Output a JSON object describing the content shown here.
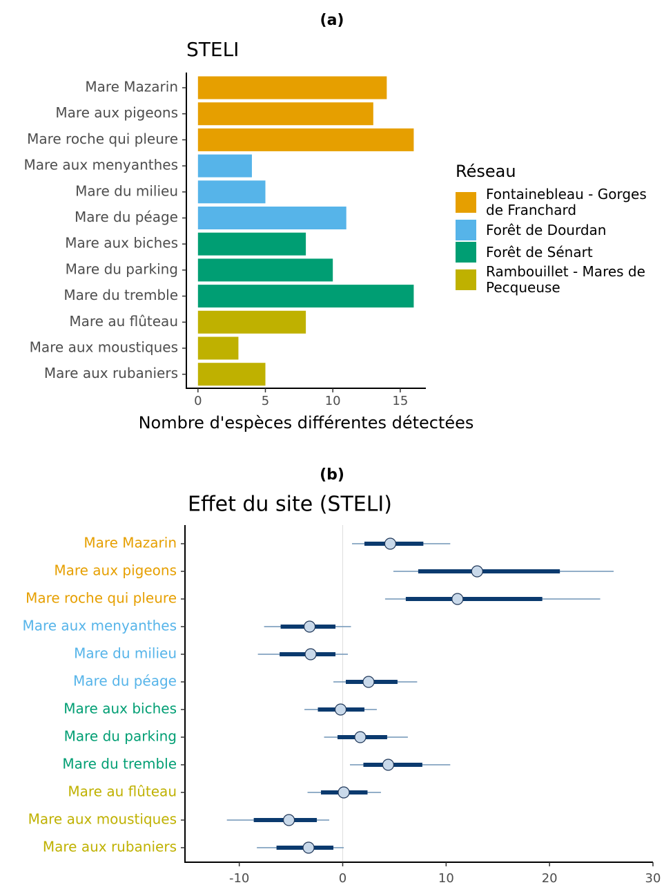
{
  "chart_data": [
    {
      "type": "bar",
      "orientation": "horizontal",
      "panel": "(a)",
      "title": "STELI",
      "x_label": "Nombre d'espèces différentes détectées",
      "legend_title": "Réseau",
      "legend_position": "right",
      "categories": [
        "Mare Mazarin",
        "Mare aux pigeons",
        "Mare roche qui pleure",
        "Mare aux menyanthes",
        "Mare du milieu",
        "Mare du péage",
        "Mare aux biches",
        "Mare du parking",
        "Mare du tremble",
        "Mare au flûteau",
        "Mare aux moustiques",
        "Mare aux rubaniers"
      ],
      "series": [
        {
          "name": "Fontainebleau - Gorges de Franchard",
          "color": "#E69F00",
          "values": [
            14,
            13,
            16,
            null,
            null,
            null,
            null,
            null,
            null,
            null,
            null,
            null
          ]
        },
        {
          "name": "Forêt de Dourdan",
          "color": "#56B4E9",
          "values": [
            null,
            null,
            null,
            4,
            5,
            11,
            null,
            null,
            null,
            null,
            null,
            null
          ]
        },
        {
          "name": "Forêt de Sénart",
          "color": "#009E73",
          "values": [
            null,
            null,
            null,
            null,
            null,
            null,
            8,
            10,
            16,
            null,
            null,
            null
          ]
        },
        {
          "name": "Rambouillet - Mares de Pecqueuse",
          "color": "#BFB100",
          "values": [
            null,
            null,
            null,
            null,
            null,
            null,
            null,
            null,
            null,
            8,
            3,
            5
          ]
        }
      ],
      "xlim": [
        -0.86,
        16.9
      ],
      "xticks": [
        0,
        5,
        10,
        15
      ]
    },
    {
      "type": "pointrange",
      "panel": "(b)",
      "title": "Effet du site (STELI)",
      "categories": [
        "Mare Mazarin",
        "Mare aux pigeons",
        "Mare roche qui pleure",
        "Mare aux menyanthes",
        "Mare du milieu",
        "Mare du péage",
        "Mare aux biches",
        "Mare du parking",
        "Mare du tremble",
        "Mare au flûteau",
        "Mare aux moustiques",
        "Mare aux rubaniers"
      ],
      "label_colors": [
        "#E69F00",
        "#E69F00",
        "#E69F00",
        "#56B4E9",
        "#56B4E9",
        "#56B4E9",
        "#009E73",
        "#009E73",
        "#009E73",
        "#BFB100",
        "#BFB100",
        "#BFB100"
      ],
      "values": [
        4.6,
        13.0,
        11.1,
        -3.2,
        -3.1,
        2.5,
        -0.2,
        1.7,
        4.4,
        0.1,
        -5.2,
        -3.3
      ],
      "lo50": [
        2.1,
        7.3,
        6.1,
        -6.0,
        -6.1,
        0.3,
        -2.4,
        -0.5,
        2.0,
        -2.1,
        -8.6,
        -6.4
      ],
      "hi50": [
        7.8,
        21.0,
        19.3,
        -0.7,
        -0.7,
        5.3,
        2.1,
        4.3,
        7.7,
        2.4,
        -2.5,
        -0.9
      ],
      "lo95": [
        0.9,
        4.9,
        4.1,
        -7.6,
        -8.2,
        -0.9,
        -3.7,
        -1.8,
        0.7,
        -3.4,
        -11.2,
        -8.3
      ],
      "hi95": [
        10.4,
        26.2,
        24.9,
        0.8,
        0.5,
        7.2,
        3.3,
        6.3,
        10.4,
        3.7,
        -1.3,
        0.1
      ],
      "vline": 0,
      "xlim": [
        -15.25,
        30
      ],
      "xticks": [
        -10,
        0,
        10,
        20,
        30
      ]
    }
  ]
}
